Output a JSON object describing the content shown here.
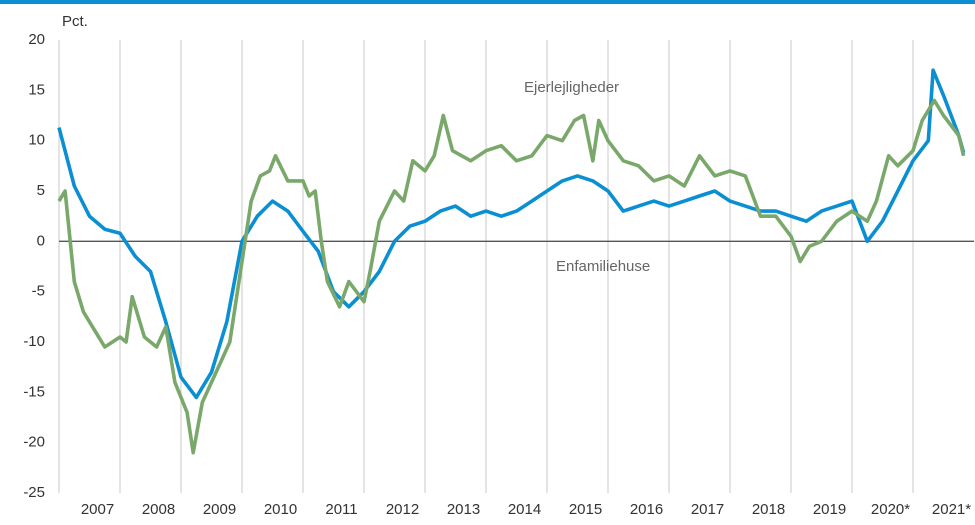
{
  "chart_data": {
    "type": "line",
    "ylabel": "Pct.",
    "annotations": [
      "Ejerlejligheder",
      "Enfamiliehuse"
    ],
    "xlim": [
      2007,
      2022
    ],
    "xticks": [
      {
        "value": 2007.5,
        "label": "2007"
      },
      {
        "value": 2008.5,
        "label": "2008"
      },
      {
        "value": 2009.5,
        "label": "2009"
      },
      {
        "value": 2010.5,
        "label": "2010"
      },
      {
        "value": 2011.5,
        "label": "2011"
      },
      {
        "value": 2012.5,
        "label": "2012"
      },
      {
        "value": 2013.5,
        "label": "2013"
      },
      {
        "value": 2014.5,
        "label": "2014"
      },
      {
        "value": 2015.5,
        "label": "2015"
      },
      {
        "value": 2016.5,
        "label": "2016"
      },
      {
        "value": 2017.5,
        "label": "2017"
      },
      {
        "value": 2018.5,
        "label": "2018"
      },
      {
        "value": 2019.5,
        "label": "2019"
      },
      {
        "value": 2020.5,
        "label": "2020*"
      },
      {
        "value": 2021.5,
        "label": "2021*"
      }
    ],
    "ylim": [
      -25,
      20
    ],
    "yticks": [
      -25,
      -20,
      -15,
      -10,
      -5,
      0,
      5,
      10,
      15,
      20
    ],
    "series": [
      {
        "name": "Enfamiliehuse",
        "color": "#0b8fd3",
        "x": [
          2007.0,
          2007.25,
          2007.5,
          2007.75,
          2008.0,
          2008.25,
          2008.5,
          2008.75,
          2009.0,
          2009.25,
          2009.5,
          2009.75,
          2010.0,
          2010.25,
          2010.5,
          2010.75,
          2011.0,
          2011.25,
          2011.5,
          2011.75,
          2012.0,
          2012.25,
          2012.5,
          2012.75,
          2013.0,
          2013.25,
          2013.5,
          2013.75,
          2014.0,
          2014.25,
          2014.5,
          2014.75,
          2015.0,
          2015.25,
          2015.5,
          2015.75,
          2016.0,
          2016.25,
          2016.5,
          2016.75,
          2017.0,
          2017.25,
          2017.5,
          2017.75,
          2018.0,
          2018.25,
          2018.5,
          2018.75,
          2019.0,
          2019.25,
          2019.5,
          2019.75,
          2020.0,
          2020.25,
          2020.5,
          2020.75,
          2021.0,
          2021.25,
          2021.33,
          2021.5,
          2021.75,
          2021.83
        ],
        "values": [
          11.3,
          5.5,
          2.5,
          1.2,
          0.8,
          -1.5,
          -3,
          -8,
          -13.5,
          -15.5,
          -13,
          -8,
          0,
          2.5,
          4,
          3,
          1,
          -1,
          -5,
          -6.5,
          -5,
          -3,
          0,
          1.5,
          2,
          3,
          3.5,
          2.5,
          3,
          2.5,
          3,
          4,
          5,
          6,
          6.5,
          6,
          5,
          3,
          3.5,
          4,
          3.5,
          4,
          4.5,
          5,
          4,
          3.5,
          3,
          3,
          2.5,
          2,
          3,
          3.5,
          4,
          0,
          2,
          5,
          8,
          10,
          17,
          14.5,
          10.5,
          8.8
        ]
      },
      {
        "name": "Ejerlejligheder",
        "color": "#7aa86a",
        "x": [
          2007.0,
          2007.1,
          2007.25,
          2007.4,
          2007.6,
          2007.75,
          2008.0,
          2008.1,
          2008.2,
          2008.4,
          2008.6,
          2008.75,
          2008.9,
          2009.1,
          2009.2,
          2009.35,
          2009.5,
          2009.65,
          2009.8,
          2010.0,
          2010.15,
          2010.3,
          2010.45,
          2010.55,
          2010.75,
          2011.0,
          2011.1,
          2011.2,
          2011.3,
          2011.4,
          2011.6,
          2011.75,
          2012.0,
          2012.1,
          2012.25,
          2012.5,
          2012.65,
          2012.8,
          2013.0,
          2013.15,
          2013.3,
          2013.45,
          2013.75,
          2014.0,
          2014.25,
          2014.5,
          2014.75,
          2015.0,
          2015.25,
          2015.45,
          2015.6,
          2015.75,
          2015.85,
          2016.0,
          2016.25,
          2016.5,
          2016.75,
          2017.0,
          2017.25,
          2017.5,
          2017.75,
          2018.0,
          2018.25,
          2018.5,
          2018.75,
          2019.0,
          2019.15,
          2019.3,
          2019.5,
          2019.75,
          2020.0,
          2020.25,
          2020.4,
          2020.6,
          2020.75,
          2021.0,
          2021.15,
          2021.35,
          2021.5,
          2021.75,
          2021.83
        ],
        "values": [
          4,
          5,
          -4,
          -7,
          -9,
          -10.5,
          -9.5,
          -10,
          -5.5,
          -9.5,
          -10.5,
          -8.5,
          -14,
          -17,
          -21,
          -16,
          -14,
          -12,
          -10,
          -2,
          4,
          6.5,
          7,
          8.5,
          6,
          6,
          4.5,
          5,
          0,
          -4,
          -6.5,
          -4,
          -6,
          -3,
          2,
          5,
          4,
          8,
          7,
          8.5,
          12.5,
          9,
          8,
          9,
          9.5,
          8,
          8.5,
          10.5,
          10,
          12,
          12.5,
          8,
          12,
          10,
          8,
          7.5,
          6,
          6.5,
          5.5,
          8.5,
          6.5,
          7,
          6.5,
          2.5,
          2.5,
          0.5,
          -2,
          -0.5,
          0,
          2,
          3,
          2,
          4,
          8.5,
          7.5,
          9,
          12,
          14,
          12.5,
          10.5,
          8.5
        ]
      }
    ]
  }
}
